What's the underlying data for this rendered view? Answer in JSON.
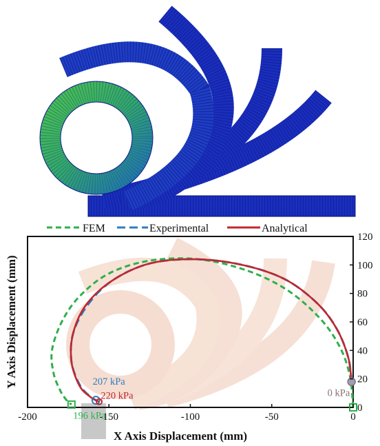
{
  "figure": {
    "fem_panel": {
      "colors": {
        "inner": "#3fb34a",
        "mid": "#1fa0a0",
        "outer": "#1a2fbf",
        "deep": "#0d1a8a"
      }
    }
  },
  "chart_data": {
    "type": "line",
    "title": "",
    "xlabel": "X Axis Displacement (mm)",
    "ylabel": "Y Axis Displacement (mm)",
    "xlim": [
      -200,
      0
    ],
    "ylim": [
      0,
      120
    ],
    "xticks": [
      -200,
      -150,
      -100,
      -50,
      0
    ],
    "xtick_labels": [
      "-200",
      "-150",
      "-100",
      "-50",
      "0"
    ],
    "yticks": [
      0,
      20,
      40,
      60,
      80,
      100,
      120
    ],
    "ytick_labels": [
      "0",
      "20",
      "40",
      "60",
      "80",
      "100",
      "120"
    ],
    "y_axis_position": "right",
    "legend_position": "top",
    "grid": false,
    "series": [
      {
        "name": "FEM",
        "style": "dashed",
        "color": "#2db04b",
        "x": [
          0,
          -2,
          -8,
          -20,
          -40,
          -65,
          -95,
          -125,
          -150,
          -168,
          -179,
          -185,
          -184,
          -180,
          -176,
          -173
        ],
        "y": [
          0,
          22,
          42,
          62,
          82,
          96,
          104,
          103,
          94,
          78,
          60,
          40,
          24,
          12,
          5,
          2
        ]
      },
      {
        "name": "Experimental",
        "style": "dashed",
        "color": "#2f7bbd",
        "x": [
          -1,
          -3,
          -10,
          -22,
          -42,
          -68,
          -97,
          -125,
          -148,
          -163,
          -172,
          -173,
          -168,
          -162,
          -158
        ],
        "y": [
          18,
          35,
          55,
          73,
          90,
          100,
          104,
          101,
          89,
          72,
          52,
          32,
          16,
          8,
          5
        ]
      },
      {
        "name": "Analytical",
        "style": "solid",
        "color": "#c0272d",
        "x": [
          -1,
          -3,
          -10,
          -22,
          -42,
          -68,
          -97,
          -125,
          -148,
          -164,
          -172,
          -173,
          -168,
          -161,
          -156
        ],
        "y": [
          18,
          35,
          55,
          73,
          90,
          100,
          104,
          101,
          89,
          72,
          52,
          32,
          15,
          7,
          4
        ]
      }
    ],
    "annotations": [
      {
        "text": "0 kPa",
        "x": -2,
        "y": 8,
        "color": "#8b6f6f"
      },
      {
        "text": "207 kPa",
        "x": -160,
        "y": 16,
        "color": "#2f7bbd"
      },
      {
        "text": "220 kPa",
        "x": -155,
        "y": 6,
        "color": "#c0272d"
      },
      {
        "text": "196 kPa",
        "x": -172,
        "y": -8,
        "color": "#2db04b"
      }
    ]
  }
}
